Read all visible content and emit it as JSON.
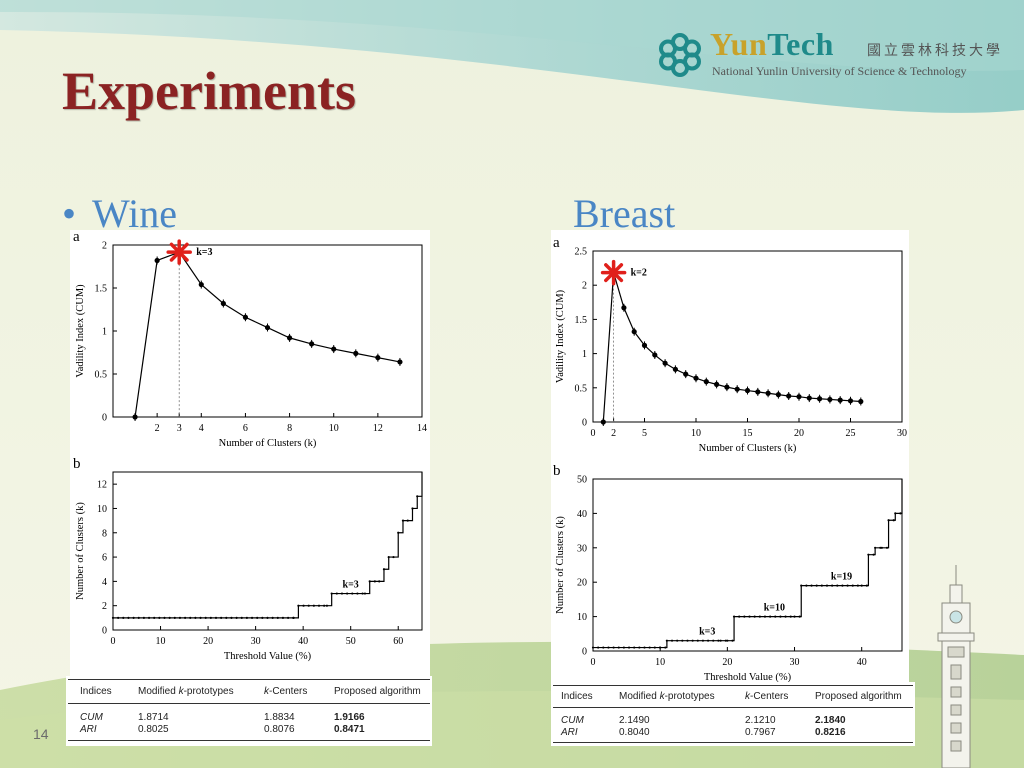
{
  "logo": {
    "name_part1": "Yun",
    "name_part2": "Tech",
    "chinese": "國立雲林科技大學",
    "subtitle": "National Yunlin University of Science & Technology",
    "icon": "snowflake-logo-icon"
  },
  "slide": {
    "title": "Experiments",
    "bullet": "Wine",
    "right_heading": "Breast",
    "page_number": "14"
  },
  "colors": {
    "title": "#8b2323",
    "heading": "#4a86c5",
    "highlight_star": "#e0201b",
    "highlight_text": "#e0201b",
    "annotation_blue": "#1a2fd0"
  },
  "tables": {
    "wine": {
      "headers": [
        "Indices",
        "Modified k-prototypes",
        "k-Centers",
        "Proposed algorithm"
      ],
      "rows": [
        {
          "index": "CUM",
          "mkp": "1.8714",
          "kc": "1.8834",
          "prop": "1.9166"
        },
        {
          "index": "ARI",
          "mkp": "0.8025",
          "kc": "0.8076",
          "prop": "0.8471"
        }
      ]
    },
    "breast": {
      "headers": [
        "Indices",
        "Modified k-prototypes",
        "k-Centers",
        "Proposed algorithm"
      ],
      "rows": [
        {
          "index": "CUM",
          "mkp": "2.1490",
          "kc": "2.1210",
          "prop": "2.1840"
        },
        {
          "index": "ARI",
          "mkp": "0.8040",
          "kc": "0.7967",
          "prop": "0.8216"
        }
      ]
    }
  },
  "chart_data": [
    {
      "id": "wine_a",
      "panel_label": "a",
      "type": "line",
      "xlabel": "Number of Clusters (k)",
      "ylabel": "Vadility Index (CUM)",
      "xlim": [
        0,
        14
      ],
      "ylim": [
        0,
        2
      ],
      "xticks": [
        2,
        3,
        4,
        6,
        8,
        10,
        12,
        14
      ],
      "yticks": [
        0,
        0.5,
        1,
        1.5,
        2
      ],
      "x": [
        1,
        2,
        3,
        4,
        5,
        6,
        7,
        8,
        9,
        10,
        11,
        12,
        13
      ],
      "y": [
        0,
        1.82,
        1.9166,
        1.54,
        1.32,
        1.16,
        1.04,
        0.92,
        0.85,
        0.79,
        0.74,
        0.69,
        0.64
      ],
      "highlight": {
        "x": 3,
        "y": 1.9166,
        "label": "k=3"
      },
      "grid": false
    },
    {
      "id": "wine_b",
      "panel_label": "b",
      "type": "line",
      "xlabel": "Threshold Value (%)",
      "ylabel": "Number of Clusters (k)",
      "xlim": [
        0,
        65
      ],
      "ylim": [
        0,
        13
      ],
      "xticks": [
        0,
        10,
        20,
        30,
        40,
        50,
        60
      ],
      "yticks": [
        0,
        2,
        4,
        6,
        8,
        10,
        12
      ],
      "steps": [
        [
          0,
          1
        ],
        [
          38,
          1
        ],
        [
          39,
          2
        ],
        [
          45,
          2
        ],
        [
          46,
          3
        ],
        [
          53,
          3
        ],
        [
          54,
          4
        ],
        [
          56,
          4
        ],
        [
          57,
          5
        ],
        [
          58,
          6
        ],
        [
          59,
          6
        ],
        [
          60,
          8
        ],
        [
          61,
          9
        ],
        [
          62,
          9
        ],
        [
          63,
          10
        ],
        [
          64,
          11
        ],
        [
          65,
          13
        ]
      ],
      "annotations": [
        {
          "x": 50,
          "y": 3,
          "label": "k=3"
        }
      ],
      "grid": false
    },
    {
      "id": "breast_a",
      "panel_label": "a",
      "type": "line",
      "xlabel": "Number of Clusters (k)",
      "ylabel": "Vadility Index (CUM)",
      "xlim": [
        0,
        30
      ],
      "ylim": [
        0,
        2.5
      ],
      "xticks": [
        0,
        2,
        5,
        10,
        15,
        20,
        25,
        30
      ],
      "yticks": [
        0,
        0.5,
        1,
        1.5,
        2,
        2.5
      ],
      "x": [
        1,
        2,
        3,
        4,
        5,
        6,
        7,
        8,
        9,
        10,
        11,
        12,
        13,
        14,
        15,
        16,
        17,
        18,
        19,
        20,
        21,
        22,
        23,
        24,
        25,
        26
      ],
      "y": [
        0,
        2.184,
        1.67,
        1.32,
        1.12,
        0.98,
        0.86,
        0.77,
        0.7,
        0.64,
        0.59,
        0.55,
        0.51,
        0.48,
        0.46,
        0.44,
        0.42,
        0.4,
        0.38,
        0.37,
        0.35,
        0.34,
        0.33,
        0.32,
        0.31,
        0.3
      ],
      "highlight": {
        "x": 2,
        "y": 2.184,
        "label": "k=2"
      },
      "grid": false
    },
    {
      "id": "breast_b",
      "panel_label": "b",
      "type": "line",
      "xlabel": "Threshold Value (%)",
      "ylabel": "Number of Clusters (k)",
      "xlim": [
        0,
        46
      ],
      "ylim": [
        0,
        50
      ],
      "xticks": [
        0,
        10,
        20,
        30,
        40
      ],
      "yticks": [
        0,
        10,
        20,
        30,
        40,
        50
      ],
      "steps": [
        [
          0,
          1
        ],
        [
          10,
          1
        ],
        [
          11,
          3
        ],
        [
          19,
          3
        ],
        [
          20,
          3
        ],
        [
          21,
          10
        ],
        [
          30,
          10
        ],
        [
          31,
          19
        ],
        [
          40,
          19
        ],
        [
          41,
          28
        ],
        [
          42,
          30
        ],
        [
          43,
          30
        ],
        [
          44,
          38
        ],
        [
          45,
          40
        ],
        [
          46,
          50
        ]
      ],
      "annotations": [
        {
          "x": 17,
          "y": 3,
          "label": "k=3"
        },
        {
          "x": 27,
          "y": 10,
          "label": "k=10"
        },
        {
          "x": 37,
          "y": 19,
          "label": "k=19"
        }
      ],
      "grid": false
    }
  ]
}
